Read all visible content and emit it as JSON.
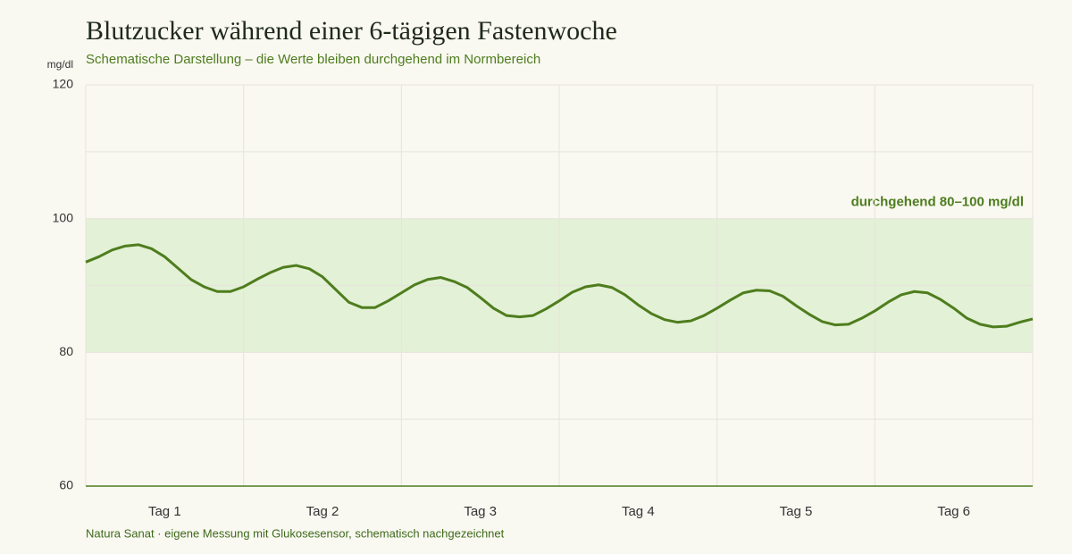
{
  "chart_data": {
    "type": "line",
    "title": "Blutzucker während einer 6-tägigen Fastenwoche",
    "subtitle": "Schematische Darstellung – die Werte bleiben durchgehend im Normbereich",
    "y_unit": "mg/dl",
    "source": "Natura Sanat · eigene Messung mit Glukosesensor, schematisch nachgezeichnet",
    "band": {
      "range": [
        80,
        100
      ],
      "label": "durchgehend 80–100 mg/dl",
      "color": "#e3f1d6"
    },
    "x": [
      0,
      2,
      4,
      6,
      8,
      10,
      12,
      14,
      16,
      18,
      20,
      22,
      24,
      26,
      28,
      30,
      32,
      34,
      36,
      38,
      40,
      42,
      44,
      46,
      48,
      50,
      52,
      54,
      56,
      58,
      60,
      62,
      64,
      66,
      68,
      70,
      72,
      74,
      76,
      78,
      80,
      82,
      84,
      86,
      88,
      90,
      92,
      94,
      96,
      98,
      100,
      102,
      104,
      106,
      108,
      110,
      112,
      114,
      116,
      118,
      120,
      122,
      124,
      126,
      128,
      130,
      132,
      134,
      136,
      138,
      140,
      142,
      144
    ],
    "series": [
      {
        "color": "#4e7d1e",
        "values": [
          93.5,
          94.3,
          95.3,
          95.9,
          96.1,
          95.5,
          94.3,
          92.6,
          90.9,
          89.8,
          89.1,
          89.1,
          89.8,
          90.9,
          91.9,
          92.7,
          93.0,
          92.5,
          91.3,
          89.4,
          87.5,
          86.7,
          86.7,
          87.7,
          88.9,
          90.1,
          90.9,
          91.2,
          90.6,
          89.7,
          88.2,
          86.6,
          85.5,
          85.3,
          85.5,
          86.5,
          87.7,
          89.0,
          89.8,
          90.1,
          89.7,
          88.6,
          87.1,
          85.8,
          84.9,
          84.5,
          84.7,
          85.5,
          86.6,
          87.8,
          88.9,
          89.3,
          89.2,
          88.4,
          87.0,
          85.7,
          84.6,
          84.1,
          84.2,
          85.1,
          86.2,
          87.5,
          88.6,
          89.1,
          88.9,
          87.9,
          86.6,
          85.1,
          84.2,
          83.8,
          83.9,
          84.5,
          85.0
        ]
      }
    ],
    "xlim": [
      0,
      144
    ],
    "xticks": [
      {
        "value": 12,
        "label": "Tag 1"
      },
      {
        "value": 36,
        "label": "Tag 2"
      },
      {
        "value": 60,
        "label": "Tag 3"
      },
      {
        "value": 84,
        "label": "Tag 4"
      },
      {
        "value": 108,
        "label": "Tag 5"
      },
      {
        "value": 132,
        "label": "Tag 6"
      }
    ],
    "x_grid": [
      0,
      24,
      48,
      72,
      96,
      120,
      144
    ],
    "ylim": [
      60,
      120
    ],
    "yticks": [
      60,
      80,
      100,
      120
    ],
    "y_minor_grid": [
      70,
      90,
      110
    ],
    "grid": true
  }
}
